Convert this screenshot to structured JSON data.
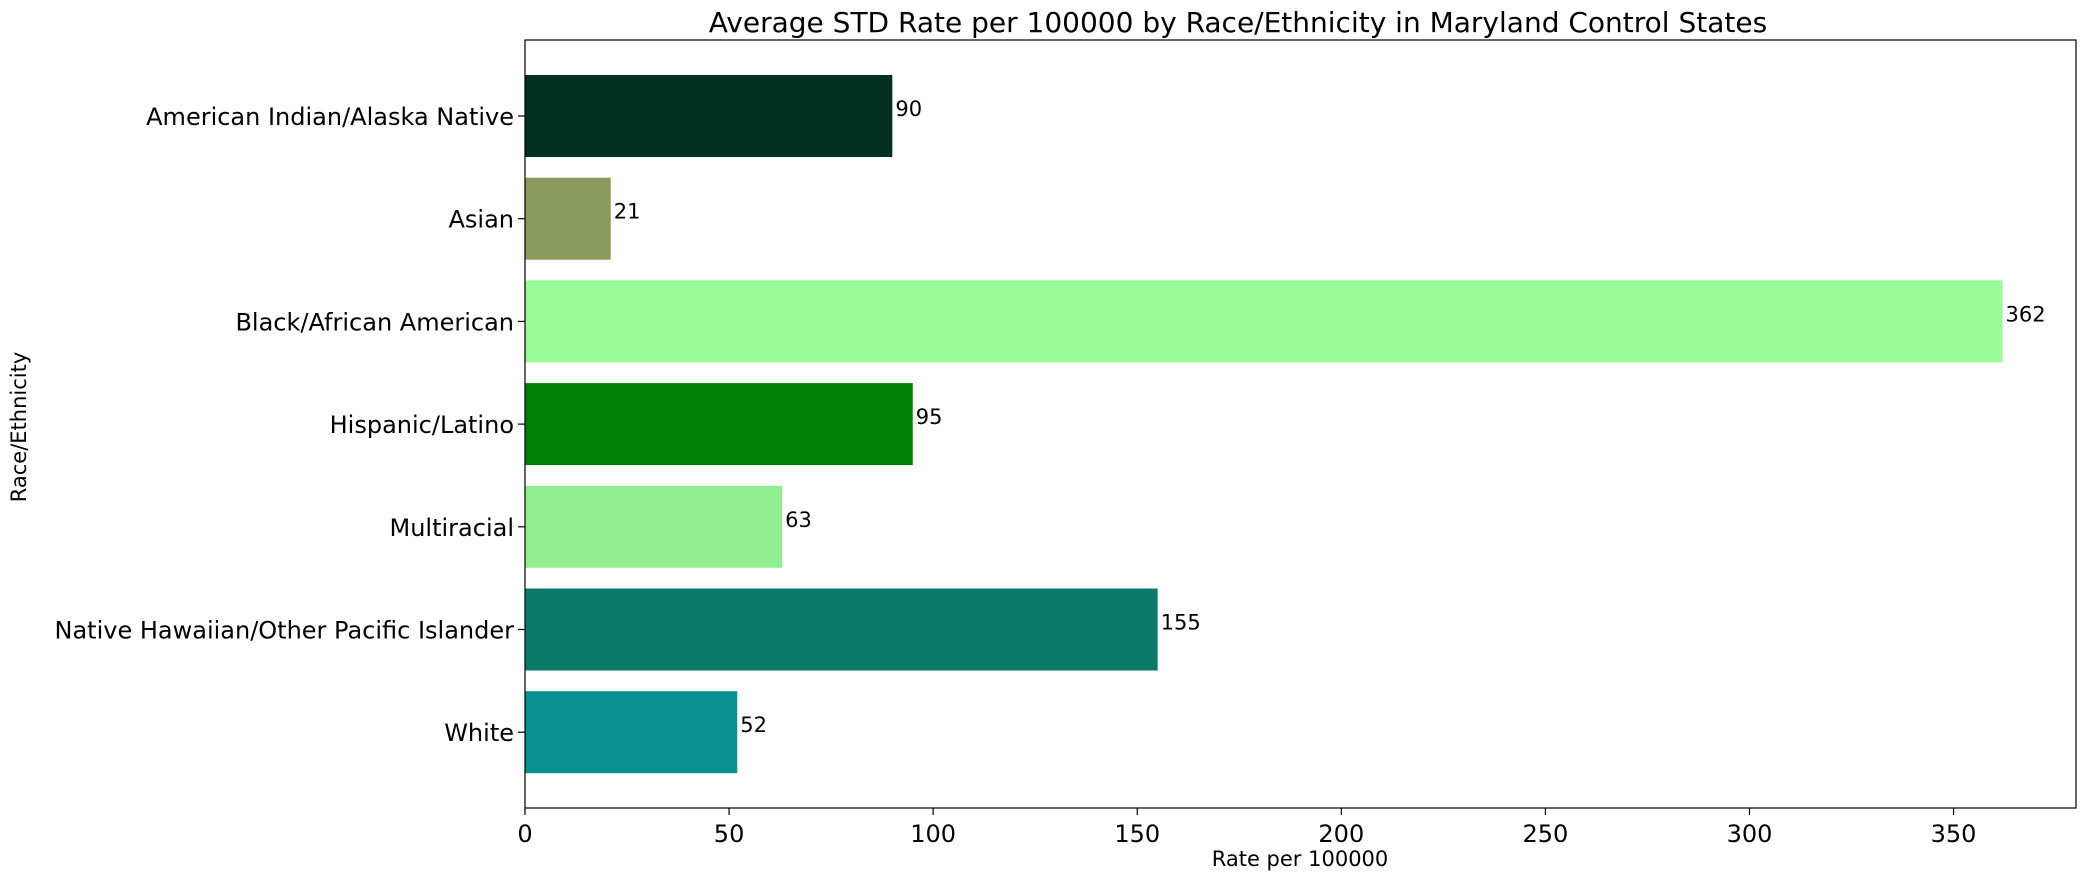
{
  "chart_data": {
    "type": "bar",
    "orientation": "horizontal",
    "title": "Average STD Rate per 100000 by Race/Ethnicity in Maryland Control States",
    "xlabel": "Rate per 100000",
    "ylabel": "Race/Ethnicity",
    "categories": [
      "American Indian/Alaska Native",
      "Asian",
      "Black/African American",
      "Hispanic/Latino",
      "Multiracial",
      "Native Hawaiian/Other Pacific Islander",
      "White"
    ],
    "values": [
      90,
      21,
      362,
      95,
      63,
      155,
      52
    ],
    "data_labels": [
      "90",
      "21",
      "362",
      "95",
      "63",
      "155",
      "52"
    ],
    "colors": [
      "#023020",
      "#8A9A5B",
      "#98FB98",
      "#008000",
      "#90EE90",
      "#097969",
      "#088F8F"
    ],
    "xlim": [
      0,
      380
    ],
    "xticks": [
      0,
      50,
      100,
      150,
      200,
      250,
      300,
      350
    ],
    "xtick_labels": [
      "0",
      "50",
      "100",
      "150",
      "200",
      "250",
      "300",
      "350"
    ],
    "grid": false,
    "legend": "none"
  }
}
